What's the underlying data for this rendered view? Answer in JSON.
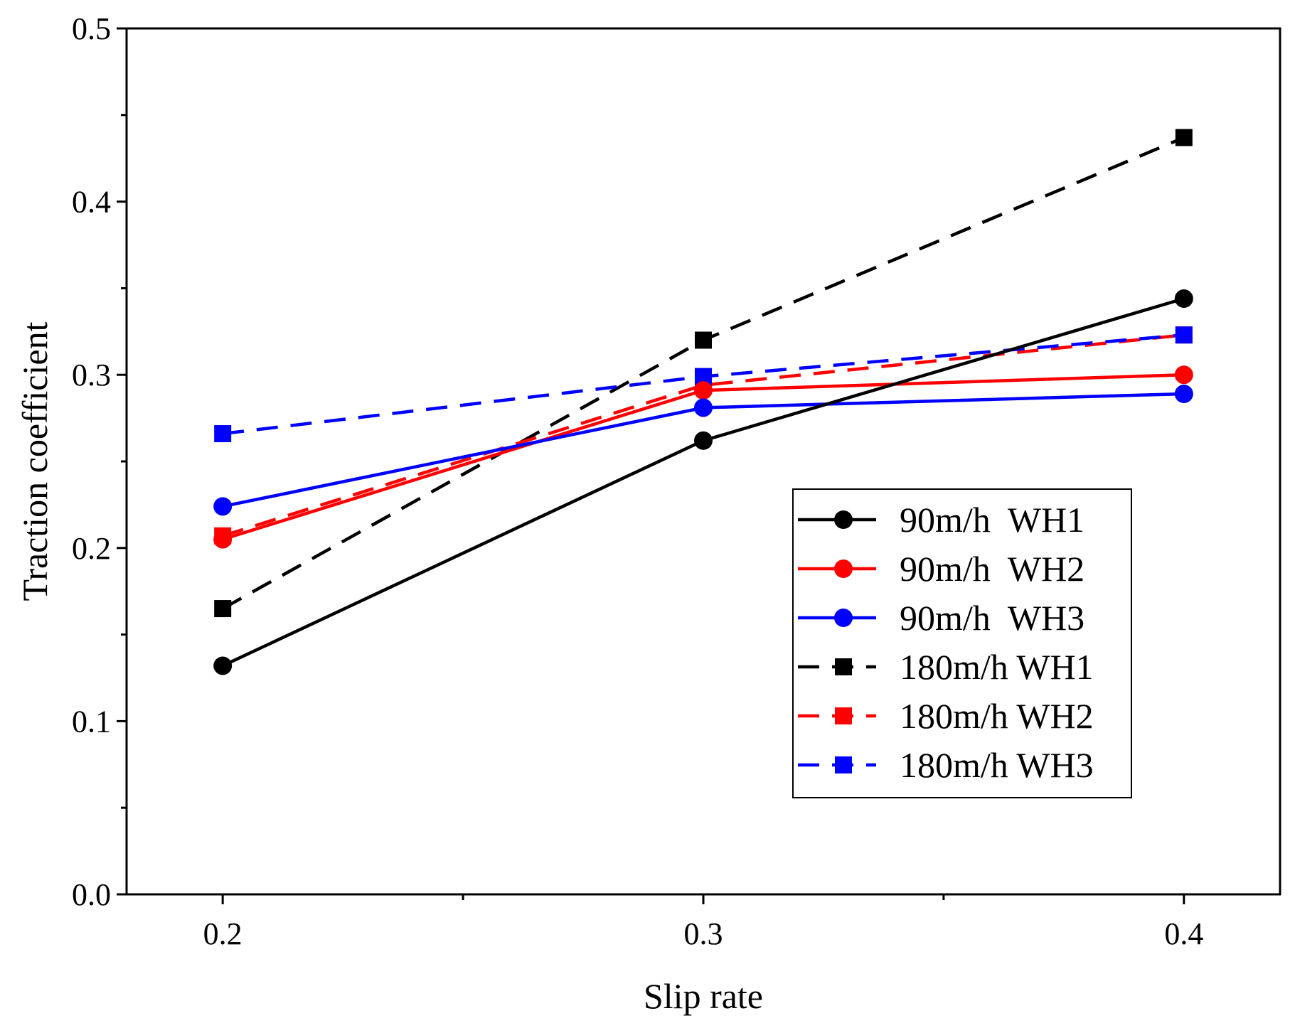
{
  "chart_data": {
    "type": "line",
    "title": "",
    "xlabel": "Slip rate",
    "ylabel": "Traction coefficient",
    "xlim": [
      0.18,
      0.42
    ],
    "ylim": [
      0.0,
      0.5
    ],
    "x": [
      0.2,
      0.3,
      0.4
    ],
    "xticks": [
      0.2,
      0.3,
      0.4
    ],
    "xtick_labels": [
      "0.2",
      "0.3",
      "0.4"
    ],
    "yticks": [
      0.0,
      0.1,
      0.2,
      0.3,
      0.4,
      0.5
    ],
    "ytick_labels": [
      "0.0",
      "0.1",
      "0.2",
      "0.3",
      "0.4",
      "0.5"
    ],
    "grid": false,
    "legend_position": "center-right",
    "series": [
      {
        "name": "90m/h  WH1",
        "values": [
          0.132,
          0.262,
          0.344
        ],
        "color": "#000000",
        "dash": "solid",
        "marker": "circle"
      },
      {
        "name": "90m/h  WH2",
        "values": [
          0.205,
          0.291,
          0.3
        ],
        "color": "#ff0000",
        "dash": "solid",
        "marker": "circle"
      },
      {
        "name": "90m/h  WH3",
        "values": [
          0.224,
          0.281,
          0.289
        ],
        "color": "#0000ff",
        "dash": "solid",
        "marker": "circle"
      },
      {
        "name": "180m/h WH1",
        "values": [
          0.165,
          0.32,
          0.437
        ],
        "color": "#000000",
        "dash": "dashed",
        "marker": "square"
      },
      {
        "name": "180m/h WH2",
        "values": [
          0.207,
          0.294,
          0.323
        ],
        "color": "#ff0000",
        "dash": "dashed",
        "marker": "square"
      },
      {
        "name": "180m/h WH3",
        "values": [
          0.266,
          0.299,
          0.323
        ],
        "color": "#0000ff",
        "dash": "dashed",
        "marker": "square"
      }
    ]
  }
}
